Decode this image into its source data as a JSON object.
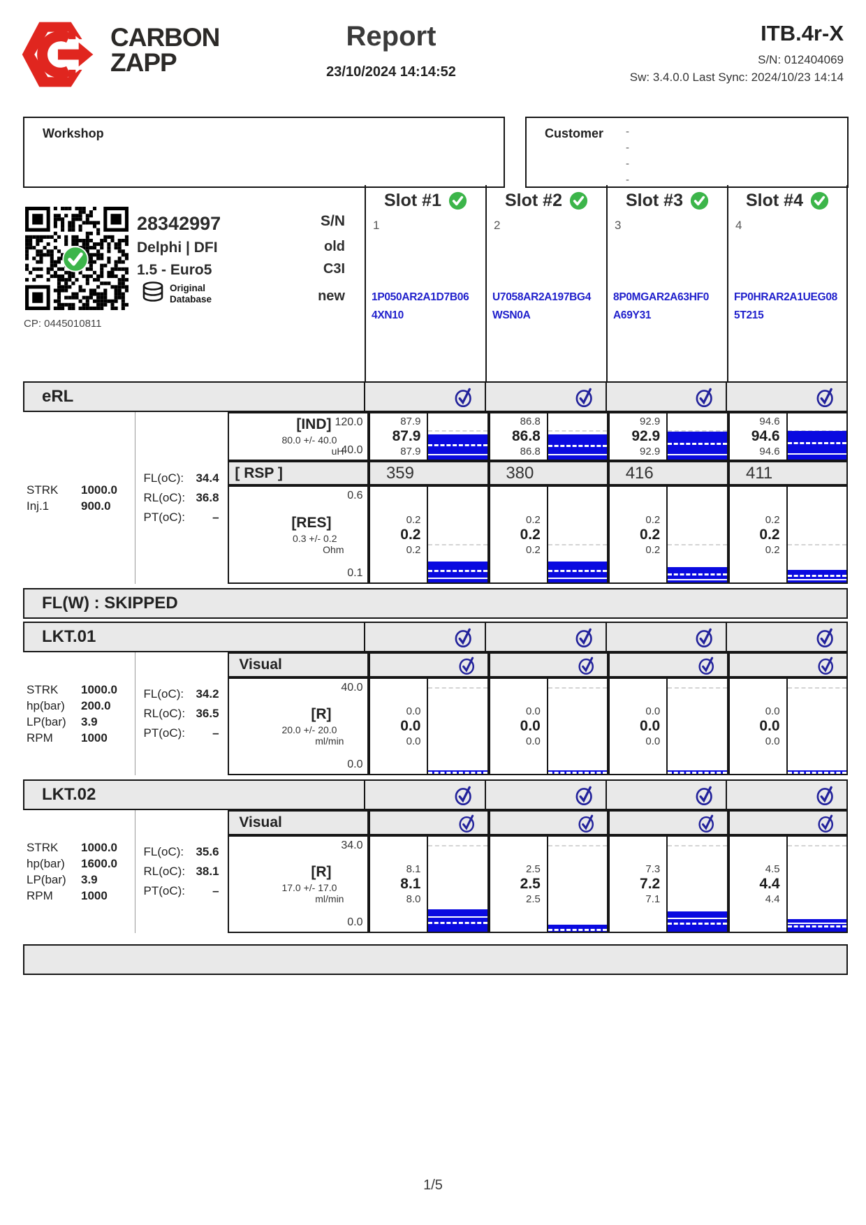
{
  "header": {
    "brand_line1": "CARBON",
    "brand_line2": "ZAPP",
    "title": "Report",
    "datetime": "23/10/2024 14:14:52",
    "model": "ITB.4r-X",
    "serial": "S/N: 012404069",
    "sw_line": "Sw: 3.4.0.0 Last Sync: 2024/10/23 14:14"
  },
  "workshop": {
    "label": "Workshop"
  },
  "customer": {
    "label": "Customer",
    "lines": [
      "-",
      "-",
      "-",
      "-"
    ]
  },
  "injector": {
    "part_number": "28342997",
    "brand": "Delphi | DFI",
    "engine": "1.5 - Euro5",
    "db_line1": "Original",
    "db_line2": "Database",
    "sn_label": "S/N",
    "old_label": "old",
    "old_value": "C3I",
    "new_label": "new",
    "cp": "CP: 0445010811"
  },
  "slots": [
    {
      "title": "Slot #1",
      "number": "1",
      "code_line1": "1P050AR2A1D7B06",
      "code_line2": "4XN10"
    },
    {
      "title": "Slot #2",
      "number": "2",
      "code_line1": "U7058AR2A197BG4",
      "code_line2": "WSN0A"
    },
    {
      "title": "Slot #3",
      "number": "3",
      "code_line1": "8P0MGAR2A63HF0",
      "code_line2": "A69Y31"
    },
    {
      "title": "Slot #4",
      "number": "4",
      "code_line1": "FP0HRAR2A1UEG08",
      "code_line2": "5T215"
    }
  ],
  "sections": {
    "erl": {
      "title": "eRL",
      "params": [
        {
          "l": "STRK",
          "v": "1000.0"
        },
        {
          "l": "Inj.1",
          "v": "900.0"
        }
      ],
      "temps": [
        {
          "l": "FL(oC):",
          "v": "34.4"
        },
        {
          "l": "RL(oC):",
          "v": "36.8"
        },
        {
          "l": "PT(oC):",
          "v": "–"
        }
      ],
      "ind": {
        "label": "[IND]",
        "tolerance": "80.0 +/- 40.0",
        "unit": "uH",
        "scale_max": "120.0",
        "scale_min": "40.0",
        "ref_line": 0.36,
        "bars": [
          {
            "max": "87.9",
            "avg": "87.9",
            "min": "87.9",
            "fill": 0.55
          },
          {
            "max": "86.8",
            "avg": "86.8",
            "min": "86.8",
            "fill": 0.54
          },
          {
            "max": "92.9",
            "avg": "92.9",
            "min": "92.9",
            "fill": 0.6
          },
          {
            "max": "94.6",
            "avg": "94.6",
            "min": "94.6",
            "fill": 0.62
          }
        ]
      },
      "rsp": {
        "label": "[ RSP ]",
        "values": [
          "359",
          "380",
          "416",
          "411"
        ]
      },
      "res": {
        "label": "[RES]",
        "tolerance": "0.3 +/- 0.2",
        "unit": "Ohm",
        "scale_max": "0.6",
        "scale_min": "0.1",
        "ref_line": 0.6,
        "bars": [
          {
            "max": "0.2",
            "avg": "0.2",
            "min": "0.2",
            "fill": 0.22
          },
          {
            "max": "0.2",
            "avg": "0.2",
            "min": "0.2",
            "fill": 0.22
          },
          {
            "max": "0.2",
            "avg": "0.2",
            "min": "0.2",
            "fill": 0.16
          },
          {
            "max": "0.2",
            "avg": "0.2",
            "min": "0.2",
            "fill": 0.13
          }
        ]
      }
    },
    "flw": {
      "title": "FL(W) : SKIPPED"
    },
    "lkt01": {
      "title": "LKT.01",
      "visual_label": "Visual",
      "params": [
        {
          "l": "STRK",
          "v": "1000.0"
        },
        {
          "l": "hp(bar)",
          "v": "200.0"
        },
        {
          "l": "LP(bar)",
          "v": "3.9"
        },
        {
          "l": "RPM",
          "v": "1000"
        }
      ],
      "temps": [
        {
          "l": "FL(oC):",
          "v": "34.2"
        },
        {
          "l": "RL(oC):",
          "v": "36.5"
        },
        {
          "l": "PT(oC):",
          "v": "–"
        }
      ],
      "r": {
        "label": "[R]",
        "tolerance": "20.0 +/- 20.0",
        "unit": "ml/min",
        "scale_max": "40.0",
        "scale_min": "0.0",
        "ref_line": 0.09,
        "bars": [
          {
            "max": "0.0",
            "avg": "0.0",
            "min": "0.0",
            "fill": 0.035
          },
          {
            "max": "0.0",
            "avg": "0.0",
            "min": "0.0",
            "fill": 0.035
          },
          {
            "max": "0.0",
            "avg": "0.0",
            "min": "0.0",
            "fill": 0.035
          },
          {
            "max": "0.0",
            "avg": "0.0",
            "min": "0.0",
            "fill": 0.035
          }
        ]
      }
    },
    "lkt02": {
      "title": "LKT.02",
      "visual_label": "Visual",
      "params": [
        {
          "l": "STRK",
          "v": "1000.0"
        },
        {
          "l": "hp(bar)",
          "v": "1600.0"
        },
        {
          "l": "LP(bar)",
          "v": "3.9"
        },
        {
          "l": "RPM",
          "v": "1000"
        }
      ],
      "temps": [
        {
          "l": "FL(oC):",
          "v": "35.6"
        },
        {
          "l": "RL(oC):",
          "v": "38.1"
        },
        {
          "l": "PT(oC):",
          "v": "–"
        }
      ],
      "r": {
        "label": "[R]",
        "tolerance": "17.0 +/- 17.0",
        "unit": "ml/min",
        "scale_max": "34.0",
        "scale_min": "0.0",
        "ref_line": 0.09,
        "bars": [
          {
            "max": "8.1",
            "avg": "8.1",
            "min": "8.0",
            "fill": 0.235
          },
          {
            "max": "2.5",
            "avg": "2.5",
            "min": "2.5",
            "fill": 0.075
          },
          {
            "max": "7.3",
            "avg": "7.2",
            "min": "7.1",
            "fill": 0.21
          },
          {
            "max": "4.5",
            "avg": "4.4",
            "min": "4.4",
            "fill": 0.13
          }
        ]
      }
    }
  },
  "footer": {
    "page": "1/5"
  },
  "colors": {
    "accent_red": "#e0261f",
    "bar_blue": "#0a0ae0",
    "check_green": "#3cb54a",
    "check_blue": "#22229b",
    "code_blue": "#2020cc",
    "band_gray": "#e9e9e9"
  }
}
